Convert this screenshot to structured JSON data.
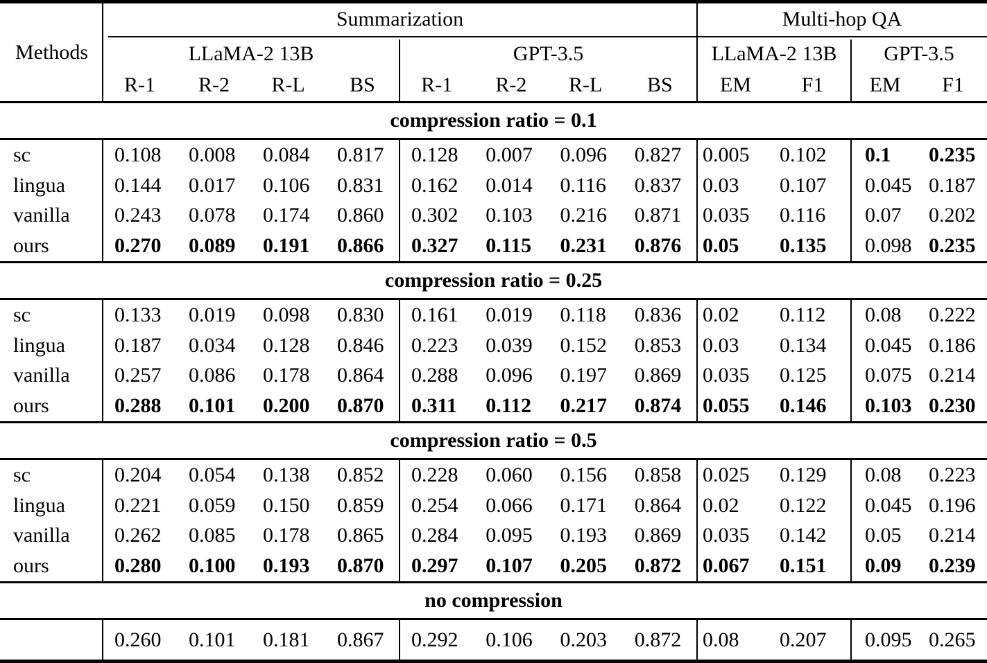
{
  "table": {
    "methods_label": "Methods",
    "top_groups": [
      {
        "label": "Summarization"
      },
      {
        "label": "Multi-hop QA"
      }
    ],
    "model_groups": [
      {
        "label": "LLaMA-2 13B"
      },
      {
        "label": "GPT-3.5"
      },
      {
        "label": "LLaMA-2 13B"
      },
      {
        "label": "GPT-3.5"
      }
    ],
    "metric_headers": [
      "R-1",
      "R-2",
      "R-L",
      "BS",
      "R-1",
      "R-2",
      "R-L",
      "BS",
      "EM",
      "F1",
      "EM",
      "F1"
    ],
    "sections": [
      {
        "title": "compression ratio = 0.1",
        "rows": [
          {
            "method": "sc",
            "values": [
              "0.108",
              "0.008",
              "0.084",
              "0.817",
              "0.128",
              "0.007",
              "0.096",
              "0.827",
              "0.005",
              "0.102",
              "0.1",
              "0.235"
            ],
            "bold": [
              false,
              false,
              false,
              false,
              false,
              false,
              false,
              false,
              false,
              false,
              true,
              true
            ]
          },
          {
            "method": "lingua",
            "values": [
              "0.144",
              "0.017",
              "0.106",
              "0.831",
              "0.162",
              "0.014",
              "0.116",
              "0.837",
              "0.03",
              "0.107",
              "0.045",
              "0.187"
            ],
            "bold": [
              false,
              false,
              false,
              false,
              false,
              false,
              false,
              false,
              false,
              false,
              false,
              false
            ]
          },
          {
            "method": "vanilla",
            "values": [
              "0.243",
              "0.078",
              "0.174",
              "0.860",
              "0.302",
              "0.103",
              "0.216",
              "0.871",
              "0.035",
              "0.116",
              "0.07",
              "0.202"
            ],
            "bold": [
              false,
              false,
              false,
              false,
              false,
              false,
              false,
              false,
              false,
              false,
              false,
              false
            ]
          },
          {
            "method": "ours",
            "values": [
              "0.270",
              "0.089",
              "0.191",
              "0.866",
              "0.327",
              "0.115",
              "0.231",
              "0.876",
              "0.05",
              "0.135",
              "0.098",
              "0.235"
            ],
            "bold": [
              true,
              true,
              true,
              true,
              true,
              true,
              true,
              true,
              true,
              true,
              false,
              true
            ]
          }
        ]
      },
      {
        "title": "compression ratio = 0.25",
        "rows": [
          {
            "method": "sc",
            "values": [
              "0.133",
              "0.019",
              "0.098",
              "0.830",
              "0.161",
              "0.019",
              "0.118",
              "0.836",
              "0.02",
              "0.112",
              "0.08",
              "0.222"
            ],
            "bold": [
              false,
              false,
              false,
              false,
              false,
              false,
              false,
              false,
              false,
              false,
              false,
              false
            ]
          },
          {
            "method": "lingua",
            "values": [
              "0.187",
              "0.034",
              "0.128",
              "0.846",
              "0.223",
              "0.039",
              "0.152",
              "0.853",
              "0.03",
              "0.134",
              "0.045",
              "0.186"
            ],
            "bold": [
              false,
              false,
              false,
              false,
              false,
              false,
              false,
              false,
              false,
              false,
              false,
              false
            ]
          },
          {
            "method": "vanilla",
            "values": [
              "0.257",
              "0.086",
              "0.178",
              "0.864",
              "0.288",
              "0.096",
              "0.197",
              "0.869",
              "0.035",
              "0.125",
              "0.075",
              "0.214"
            ],
            "bold": [
              false,
              false,
              false,
              false,
              false,
              false,
              false,
              false,
              false,
              false,
              false,
              false
            ]
          },
          {
            "method": "ours",
            "values": [
              "0.288",
              "0.101",
              "0.200",
              "0.870",
              "0.311",
              "0.112",
              "0.217",
              "0.874",
              "0.055",
              "0.146",
              "0.103",
              "0.230"
            ],
            "bold": [
              true,
              true,
              true,
              true,
              true,
              true,
              true,
              true,
              true,
              true,
              true,
              true
            ]
          }
        ]
      },
      {
        "title": "compression ratio = 0.5",
        "rows": [
          {
            "method": "sc",
            "values": [
              "0.204",
              "0.054",
              "0.138",
              "0.852",
              "0.228",
              "0.060",
              "0.156",
              "0.858",
              "0.025",
              "0.129",
              "0.08",
              "0.223"
            ],
            "bold": [
              false,
              false,
              false,
              false,
              false,
              false,
              false,
              false,
              false,
              false,
              false,
              false
            ]
          },
          {
            "method": "lingua",
            "values": [
              "0.221",
              "0.059",
              "0.150",
              "0.859",
              "0.254",
              "0.066",
              "0.171",
              "0.864",
              "0.02",
              "0.122",
              "0.045",
              "0.196"
            ],
            "bold": [
              false,
              false,
              false,
              false,
              false,
              false,
              false,
              false,
              false,
              false,
              false,
              false
            ]
          },
          {
            "method": "vanilla",
            "values": [
              "0.262",
              "0.085",
              "0.178",
              "0.865",
              "0.284",
              "0.095",
              "0.193",
              "0.869",
              "0.035",
              "0.142",
              "0.05",
              "0.214"
            ],
            "bold": [
              false,
              false,
              false,
              false,
              false,
              false,
              false,
              false,
              false,
              false,
              false,
              false
            ]
          },
          {
            "method": "ours",
            "values": [
              "0.280",
              "0.100",
              "0.193",
              "0.870",
              "0.297",
              "0.107",
              "0.205",
              "0.872",
              "0.067",
              "0.151",
              "0.09",
              "0.239"
            ],
            "bold": [
              true,
              true,
              true,
              true,
              true,
              true,
              true,
              true,
              true,
              true,
              true,
              true
            ]
          }
        ]
      },
      {
        "title": "no compression",
        "rows": [
          {
            "method": "",
            "values": [
              "0.260",
              "0.101",
              "0.181",
              "0.867",
              "0.292",
              "0.106",
              "0.203",
              "0.872",
              "0.08",
              "0.207",
              "0.095",
              "0.265"
            ],
            "bold": [
              false,
              false,
              false,
              false,
              false,
              false,
              false,
              false,
              false,
              false,
              false,
              false
            ]
          }
        ]
      }
    ]
  }
}
